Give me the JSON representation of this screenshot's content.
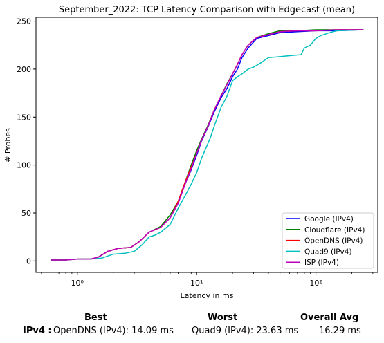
{
  "chart_data": {
    "type": "line",
    "title": "September_2022: TCP Latency Comparison with Edgecast (mean)",
    "xlabel": "Latency in ms",
    "ylabel": "# Probes",
    "xscale": "log",
    "xlim": [
      0.45,
      330
    ],
    "ylim": [
      -12,
      254
    ],
    "xticks": [
      1,
      10,
      100
    ],
    "xtick_labels": [
      "10⁰",
      "10¹",
      "10²"
    ],
    "yticks": [
      0,
      50,
      100,
      150,
      200,
      250
    ],
    "ytick_labels": [
      "0",
      "50",
      "100",
      "150",
      "200",
      "250"
    ],
    "grid": false,
    "legend_position": "lower right",
    "series": [
      {
        "name": "Google (IPv4)",
        "color": "#0000ff",
        "x": [
          0.6,
          0.8,
          1.0,
          1.3,
          1.5,
          1.8,
          2.2,
          2.8,
          3.3,
          4.0,
          5.0,
          6.0,
          7.0,
          8.0,
          9.0,
          10.0,
          11.0,
          12.5,
          14.0,
          16.0,
          18.0,
          20.0,
          22.0,
          24.0,
          27.0,
          32.0,
          40.0,
          50.0,
          70.0,
          100.0,
          150.0,
          250.0
        ],
        "y": [
          1,
          1,
          2,
          2,
          4,
          10,
          13,
          14,
          20,
          30,
          35,
          45,
          60,
          80,
          95,
          110,
          125,
          140,
          155,
          170,
          180,
          192,
          200,
          212,
          222,
          232,
          235,
          238,
          239,
          240,
          240,
          241
        ]
      },
      {
        "name": "Cloudflare (IPv4)",
        "color": "#008000",
        "x": [
          0.6,
          0.8,
          1.0,
          1.3,
          1.5,
          1.8,
          2.2,
          2.8,
          3.3,
          4.0,
          5.0,
          6.0,
          7.0,
          8.0,
          9.0,
          10.0,
          11.0,
          12.5,
          14.0,
          16.0,
          18.0,
          20.0,
          22.0,
          24.0,
          27.0,
          32.0,
          40.0,
          50.0,
          70.0,
          100.0,
          150.0,
          250.0
        ],
        "y": [
          1,
          1,
          2,
          2,
          4,
          10,
          13,
          14,
          20,
          30,
          36,
          48,
          62,
          82,
          100,
          115,
          127,
          142,
          157,
          172,
          185,
          195,
          205,
          215,
          225,
          233,
          237,
          240,
          240,
          241,
          241,
          241
        ]
      },
      {
        "name": "OpenDNS (IPv4)",
        "color": "#ff0000",
        "x": [
          0.6,
          0.8,
          1.0,
          1.3,
          1.5,
          1.8,
          2.2,
          2.8,
          3.3,
          4.0,
          5.0,
          6.0,
          7.0,
          8.0,
          9.0,
          10.0,
          11.0,
          12.5,
          14.0,
          16.0,
          18.0,
          20.0,
          22.0,
          24.0,
          27.0,
          32.0,
          40.0,
          50.0,
          70.0,
          100.0,
          150.0,
          250.0
        ],
        "y": [
          1,
          1,
          2,
          2,
          4,
          10,
          13,
          14,
          20,
          30,
          35,
          45,
          62,
          82,
          98,
          112,
          126,
          141,
          157,
          172,
          184,
          195,
          205,
          215,
          225,
          233,
          236,
          239,
          240,
          240,
          241,
          241
        ]
      },
      {
        "name": "Quad9 (IPv4)",
        "color": "#00bfbf",
        "x": [
          0.6,
          0.8,
          1.0,
          1.3,
          1.6,
          2.0,
          2.5,
          3.0,
          3.5,
          4.0,
          4.5,
          5.0,
          6.0,
          7.0,
          8.0,
          9.0,
          10.0,
          11.0,
          12.0,
          13.0,
          14.0,
          16.0,
          18.0,
          20.0,
          22.0,
          24.0,
          27.0,
          30.0,
          35.0,
          40.0,
          50.0,
          60.0,
          75.0,
          80.0,
          90.0,
          100.0,
          110.0,
          130.0,
          150.0,
          250.0
        ],
        "y": [
          1,
          1,
          2,
          2,
          3,
          7,
          8,
          10,
          17,
          25,
          27,
          30,
          38,
          55,
          68,
          80,
          92,
          107,
          118,
          128,
          140,
          160,
          172,
          188,
          192,
          195,
          200,
          202,
          207,
          212,
          213,
          214,
          215,
          222,
          225,
          232,
          235,
          238,
          240,
          241
        ]
      },
      {
        "name": "ISP (IPv4)",
        "color": "#bf00bf",
        "x": [
          0.6,
          0.8,
          1.0,
          1.3,
          1.5,
          1.8,
          2.2,
          2.8,
          3.3,
          4.0,
          5.0,
          6.0,
          7.0,
          8.0,
          9.0,
          10.0,
          11.0,
          12.5,
          14.0,
          16.0,
          18.0,
          20.0,
          22.0,
          24.0,
          27.0,
          32.0,
          40.0,
          50.0,
          70.0,
          100.0,
          150.0,
          250.0
        ],
        "y": [
          1,
          1,
          2,
          2,
          4,
          10,
          13,
          14,
          20,
          30,
          35,
          45,
          60,
          80,
          96,
          112,
          126,
          141,
          157,
          172,
          184,
          195,
          205,
          215,
          225,
          233,
          236,
          239,
          240,
          240,
          241,
          241
        ]
      }
    ]
  },
  "summary": {
    "best_header": "Best",
    "worst_header": "Worst",
    "avg_header": "Overall Avg",
    "row_label": "IPv4 :",
    "best_value": "OpenDNS (IPv4): 14.09 ms",
    "worst_value": "Quad9 (IPv4): 23.63 ms",
    "avg_value": "16.29 ms"
  }
}
